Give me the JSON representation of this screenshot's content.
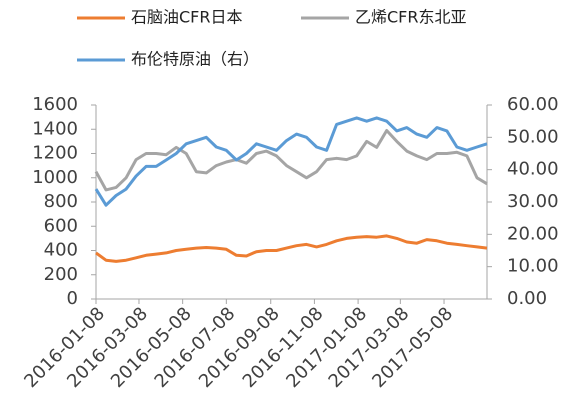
{
  "chart_data": {
    "type": "line",
    "x": [
      "2016-01-08",
      "2016-01-22",
      "2016-02-05",
      "2016-02-19",
      "2016-03-04",
      "2016-03-18",
      "2016-04-01",
      "2016-04-15",
      "2016-04-29",
      "2016-05-13",
      "2016-05-27",
      "2016-06-10",
      "2016-06-24",
      "2016-07-08",
      "2016-07-22",
      "2016-08-05",
      "2016-08-19",
      "2016-09-02",
      "2016-09-16",
      "2016-09-30",
      "2016-10-14",
      "2016-10-28",
      "2016-11-11",
      "2016-11-25",
      "2016-12-09",
      "2016-12-23",
      "2017-01-06",
      "2017-01-20",
      "2017-02-03",
      "2017-02-17",
      "2017-03-03",
      "2017-03-17",
      "2017-03-31",
      "2017-04-14",
      "2017-04-28",
      "2017-05-12",
      "2017-05-26",
      "2017-06-09",
      "2017-06-23",
      "2017-07-07"
    ],
    "series": [
      {
        "name": "石脑油CFR日本",
        "color": "#ed7d31",
        "values": [
          380,
          320,
          310,
          320,
          340,
          360,
          370,
          380,
          400,
          410,
          420,
          425,
          420,
          410,
          360,
          355,
          390,
          400,
          400,
          420,
          440,
          450,
          430,
          450,
          480,
          500,
          510,
          515,
          510,
          520,
          500,
          470,
          460,
          490,
          480,
          460,
          450,
          440,
          430,
          420
        ]
      },
      {
        "name": "乙烯CFR东北亚",
        "color": "#a5a5a5",
        "values": [
          1050,
          900,
          920,
          1000,
          1150,
          1200,
          1200,
          1190,
          1250,
          1200,
          1050,
          1040,
          1100,
          1130,
          1150,
          1120,
          1200,
          1220,
          1180,
          1100,
          1050,
          1000,
          1050,
          1150,
          1160,
          1150,
          1180,
          1300,
          1250,
          1390,
          1300,
          1220,
          1180,
          1150,
          1200,
          1200,
          1210,
          1180,
          1000,
          950
        ]
      },
      {
        "name": "布伦特原油（右）",
        "color": "#5b9bd5",
        "axis": "y2",
        "values": [
          34,
          29,
          32,
          34,
          38,
          41,
          41,
          43,
          45,
          48,
          49,
          50,
          47,
          46,
          43,
          45,
          48,
          47,
          46,
          49,
          51,
          50,
          47,
          46,
          54,
          55,
          56,
          55,
          56,
          55,
          52,
          53,
          51,
          50,
          53,
          52,
          47,
          46,
          47,
          48
        ]
      }
    ],
    "xlim": [
      "2016-01-08",
      "2017-07-07"
    ],
    "xticks": [
      "2016-01-08",
      "2016-03-08",
      "2016-05-08",
      "2016-07-08",
      "2016-09-08",
      "2016-11-08",
      "2017-01-08",
      "2017-03-08",
      "2017-05-08"
    ],
    "ylim": [
      0,
      1600
    ],
    "yticks": [
      0,
      200,
      400,
      600,
      800,
      1000,
      1200,
      1400,
      1600
    ],
    "y2lim": [
      0,
      60
    ],
    "y2ticks": [
      {
        "value": 0,
        "label": "0.00"
      },
      {
        "value": 10,
        "label": "10.00"
      },
      {
        "value": 20,
        "label": "20.00"
      },
      {
        "value": 30,
        "label": "30.00"
      },
      {
        "value": 40,
        "label": "40.00"
      },
      {
        "value": 50,
        "label": "50.00"
      },
      {
        "value": 60,
        "label": "60.00"
      }
    ],
    "legend": "top"
  }
}
